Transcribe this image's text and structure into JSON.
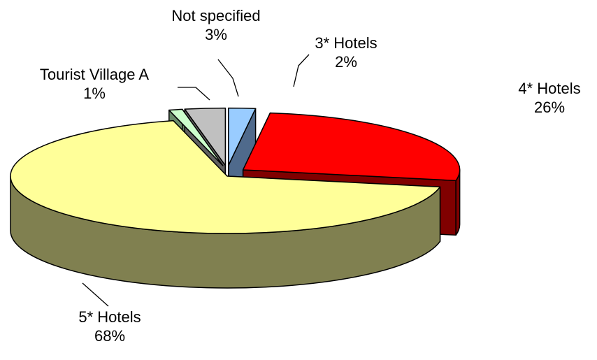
{
  "chart_data": {
    "type": "pie",
    "style": "3d-exploded",
    "title": "",
    "legend": "none",
    "slices": [
      {
        "name": "3* Hotels",
        "value": 2,
        "label": "2%",
        "color": "#99ccff",
        "side_color": "#4f6a8c"
      },
      {
        "name": "4* Hotels",
        "value": 26,
        "label": "26%",
        "color": "#ff0000",
        "side_color": "#800000"
      },
      {
        "name": "5* Hotels",
        "value": 68,
        "label": "68%",
        "color": "#ffff99",
        "side_color": "#808050"
      },
      {
        "name": "Tourist Village A",
        "value": 1,
        "label": "1%",
        "color": "#ccffcc",
        "side_color": "#6a8c6a"
      },
      {
        "name": "Not specified",
        "value": 3,
        "label": "3%",
        "color": "#c0c0c0",
        "side_color": "#606060"
      }
    ]
  }
}
